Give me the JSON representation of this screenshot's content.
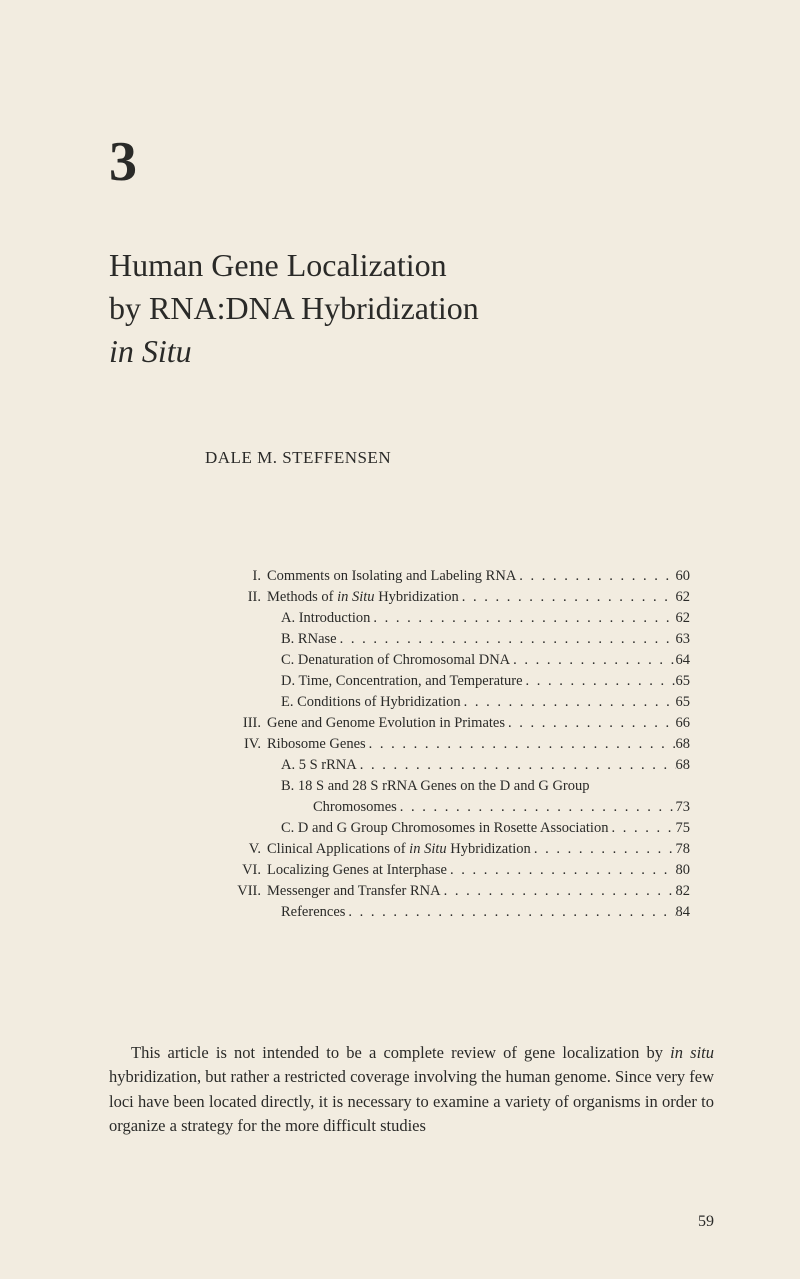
{
  "chapter_number": "3",
  "title": {
    "line1": "Human Gene Localization",
    "line2": "by RNA:DNA Hybridization",
    "line3_italic": "in Situ"
  },
  "author": "DALE M. STEFFENSEN",
  "toc": [
    {
      "num": "I.",
      "label": "Comments on Isolating and Labeling RNA",
      "page": "60",
      "level": 0
    },
    {
      "num": "II.",
      "label": "Methods of ",
      "italic": "in Situ",
      "label_after": " Hybridization",
      "page": "62",
      "level": 0
    },
    {
      "num": "",
      "label": "A. Introduction",
      "page": "62",
      "level": 1
    },
    {
      "num": "",
      "label": "B. RNase",
      "page": "63",
      "level": 1
    },
    {
      "num": "",
      "label": "C. Denaturation of Chromosomal DNA",
      "page": "64",
      "level": 1
    },
    {
      "num": "",
      "label": "D. Time, Concentration, and Temperature",
      "page": "65",
      "level": 1
    },
    {
      "num": "",
      "label": "E. Conditions of Hybridization",
      "page": "65",
      "level": 1
    },
    {
      "num": "III.",
      "label": "Gene and Genome Evolution in Primates",
      "page": "66",
      "level": 0
    },
    {
      "num": "IV.",
      "label": "Ribosome Genes",
      "page": "68",
      "level": 0
    },
    {
      "num": "",
      "label": "A. 5 S rRNA",
      "page": "68",
      "level": 1
    },
    {
      "num": "",
      "label": "B. 18 S and 28 S rRNA Genes on the D and G Group",
      "page": "",
      "level": 1,
      "nodots": true
    },
    {
      "num": "",
      "label": "Chromosomes",
      "page": "73",
      "level": 2
    },
    {
      "num": "",
      "label": "C. D and G Group Chromosomes in Rosette Association",
      "page": "75",
      "level": 1
    },
    {
      "num": "V.",
      "label": "Clinical Applications of ",
      "italic": "in Situ",
      "label_after": " Hybridization",
      "page": "78",
      "level": 0
    },
    {
      "num": "VI.",
      "label": "Localizing Genes at Interphase",
      "page": "80",
      "level": 0
    },
    {
      "num": "VII.",
      "label": "Messenger and Transfer RNA",
      "page": "82",
      "level": 0
    },
    {
      "num": "",
      "label": "References",
      "page": "84",
      "level": 1
    }
  ],
  "intro": {
    "part1": "This article is not intended to be a complete review of gene localization by ",
    "ital1": "in situ",
    "part2": " hybridization, but rather a restricted coverage involving the human genome. Since very few loci have been located directly, it is necessary to examine a variety of organisms in order to organize a strategy for the more difficult studies"
  },
  "page_number": "59",
  "colors": {
    "background": "#f2ece0",
    "text": "#2a2a28"
  }
}
